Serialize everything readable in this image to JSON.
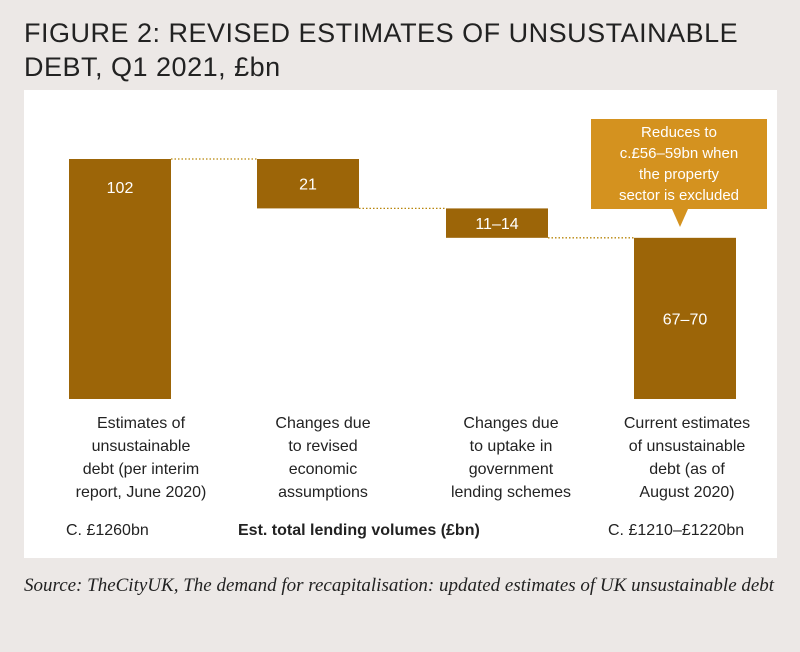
{
  "title": "FIGURE 2: REVISED ESTIMATES OF UNSUSTAINABLE DEBT, Q1 2021, £bn",
  "colors": {
    "bar": "#9c6508",
    "callout": "#d4921f",
    "connector": "#b8860b",
    "panel": "#ffffff",
    "background": "#ece8e6"
  },
  "callout": {
    "lines": [
      "Reduces to",
      "c.£56–59bn when",
      "the property",
      "sector is excluded"
    ]
  },
  "footer": {
    "left": "C. £1260bn",
    "axis_title": "Est. total lending volumes (£bn)",
    "right": "C. £1210–£1220bn"
  },
  "source": "Source: TheCityUK, The demand for recapitalisation: updated estimates of UK unsustainable debt",
  "chart_data": {
    "type": "waterfall",
    "title": "FIGURE 2: REVISED ESTIMATES OF UNSUSTAINABLE DEBT, Q1 2021, £bn",
    "ylabel": "£bn",
    "ylim": [
      0,
      102
    ],
    "categories": [
      [
        "Estimates of",
        "unsustainable",
        "debt (per interim",
        "report, June 2020)"
      ],
      [
        "Changes due",
        "to revised",
        "economic",
        "assumptions"
      ],
      [
        "Changes due",
        "to uptake in",
        "government",
        "lending schemes"
      ],
      [
        "Current estimates",
        "of unsustainable",
        "debt (as of",
        "August 2020)"
      ]
    ],
    "bars": [
      {
        "label": "102",
        "start": 0,
        "end": 102,
        "kind": "total"
      },
      {
        "label": "21",
        "start": 102,
        "end": 81,
        "kind": "decrease"
      },
      {
        "label": "11–14",
        "start": 81,
        "end": 68.5,
        "kind": "decrease"
      },
      {
        "label": "67–70",
        "start": 0,
        "end": 68.5,
        "kind": "total"
      }
    ]
  }
}
